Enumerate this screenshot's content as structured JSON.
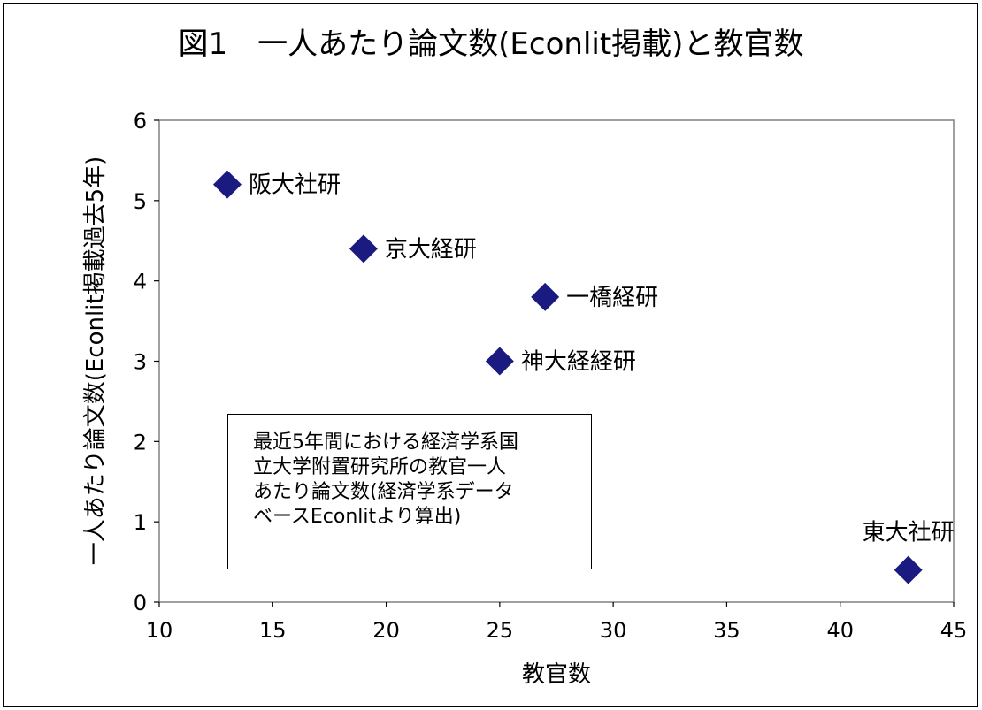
{
  "chart_data": {
    "type": "scatter",
    "title": "図1　一人あたり論文数(Econlit掲載)と教官数",
    "xlabel": "教官数",
    "ylabel": "一人あたり論文数(Econlit掲載過去5年)",
    "xlim": [
      10,
      45
    ],
    "ylim": [
      0,
      6
    ],
    "x_ticks": [
      10,
      15,
      20,
      25,
      30,
      35,
      40,
      45
    ],
    "y_ticks": [
      0,
      1,
      2,
      3,
      4,
      5,
      6
    ],
    "grid": false,
    "legend": "none",
    "marker": "diamond",
    "marker_color": "#1a1a80",
    "points": [
      {
        "label": "阪大社研",
        "x": 13,
        "y": 5.2
      },
      {
        "label": "京大経研",
        "x": 19,
        "y": 4.4
      },
      {
        "label": "一橋経研",
        "x": 27,
        "y": 3.8
      },
      {
        "label": "神大経経研",
        "x": 25,
        "y": 3.0
      },
      {
        "label": "東大社研",
        "x": 43,
        "y": 0.4
      }
    ],
    "annotation": [
      "最近5年間における経済学系国",
      "立大学附置研究所の教官一人",
      "あたり論文数(経済学系データ",
      "ベースEconlitより算出)"
    ]
  }
}
